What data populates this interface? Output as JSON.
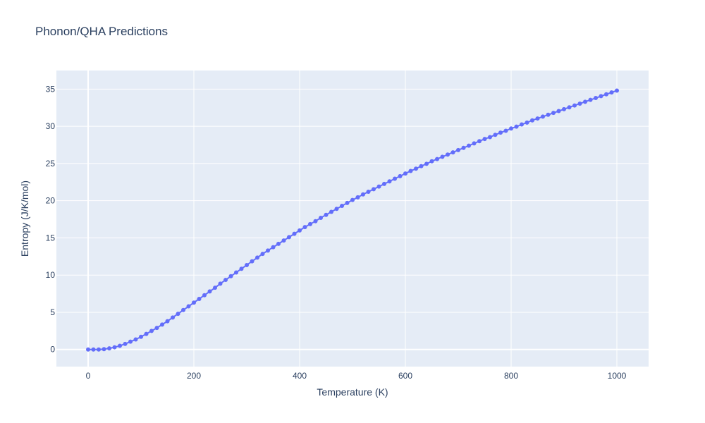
{
  "chart_data": {
    "type": "line",
    "title": "Phonon/QHA Predictions",
    "xlabel": "Temperature (K)",
    "ylabel": "Entropy (J/K/mol)",
    "xlim": [
      -60,
      1060
    ],
    "ylim": [
      -2.3,
      37.5
    ],
    "x_ticks": [
      0,
      200,
      400,
      600,
      800,
      1000
    ],
    "y_ticks": [
      0,
      5,
      10,
      15,
      20,
      25,
      30,
      35
    ],
    "grid": true,
    "legend": "none",
    "colors": {
      "plot_background": "#e5ecf6",
      "grid": "#ffffff",
      "series": "#636efa",
      "text": "#2a3f5f"
    },
    "series": [
      {
        "x": [
          0,
          10,
          20,
          30,
          40,
          50,
          60,
          70,
          80,
          90,
          100,
          110,
          120,
          130,
          140,
          150,
          160,
          170,
          180,
          190,
          200,
          210,
          220,
          230,
          240,
          250,
          260,
          270,
          280,
          290,
          300,
          310,
          320,
          330,
          340,
          350,
          360,
          370,
          380,
          390,
          400,
          410,
          420,
          430,
          440,
          450,
          460,
          470,
          480,
          490,
          500,
          510,
          520,
          530,
          540,
          550,
          560,
          570,
          580,
          590,
          600,
          610,
          620,
          630,
          640,
          650,
          660,
          670,
          680,
          690,
          700,
          710,
          720,
          730,
          740,
          750,
          760,
          770,
          780,
          790,
          800,
          810,
          820,
          830,
          840,
          850,
          860,
          870,
          880,
          890,
          900,
          910,
          920,
          930,
          940,
          950,
          960,
          970,
          980,
          990,
          1000
        ],
        "y": [
          0.0,
          0.0,
          0.0,
          0.05,
          0.15,
          0.3,
          0.5,
          0.75,
          1.05,
          1.35,
          1.7,
          2.1,
          2.5,
          2.9,
          3.35,
          3.8,
          4.3,
          4.8,
          5.3,
          5.8,
          6.3,
          6.8,
          7.3,
          7.8,
          8.3,
          8.85,
          9.35,
          9.85,
          10.35,
          10.85,
          11.35,
          11.85,
          12.35,
          12.85,
          13.3,
          13.75,
          14.2,
          14.65,
          15.1,
          15.55,
          16.0,
          16.45,
          16.85,
          17.25,
          17.7,
          18.1,
          18.5,
          18.9,
          19.3,
          19.7,
          20.1,
          20.45,
          20.85,
          21.2,
          21.55,
          21.9,
          22.25,
          22.6,
          22.95,
          23.3,
          23.65,
          24.0,
          24.3,
          24.65,
          24.95,
          25.3,
          25.6,
          25.9,
          26.2,
          26.5,
          26.8,
          27.1,
          27.4,
          27.7,
          28.0,
          28.3,
          28.55,
          28.85,
          29.15,
          29.4,
          29.7,
          29.95,
          30.25,
          30.5,
          30.8,
          31.05,
          31.3,
          31.55,
          31.8,
          32.05,
          32.3,
          32.55,
          32.8,
          33.05,
          33.3,
          33.55,
          33.8,
          34.05,
          34.3,
          34.55,
          34.8
        ]
      }
    ]
  }
}
